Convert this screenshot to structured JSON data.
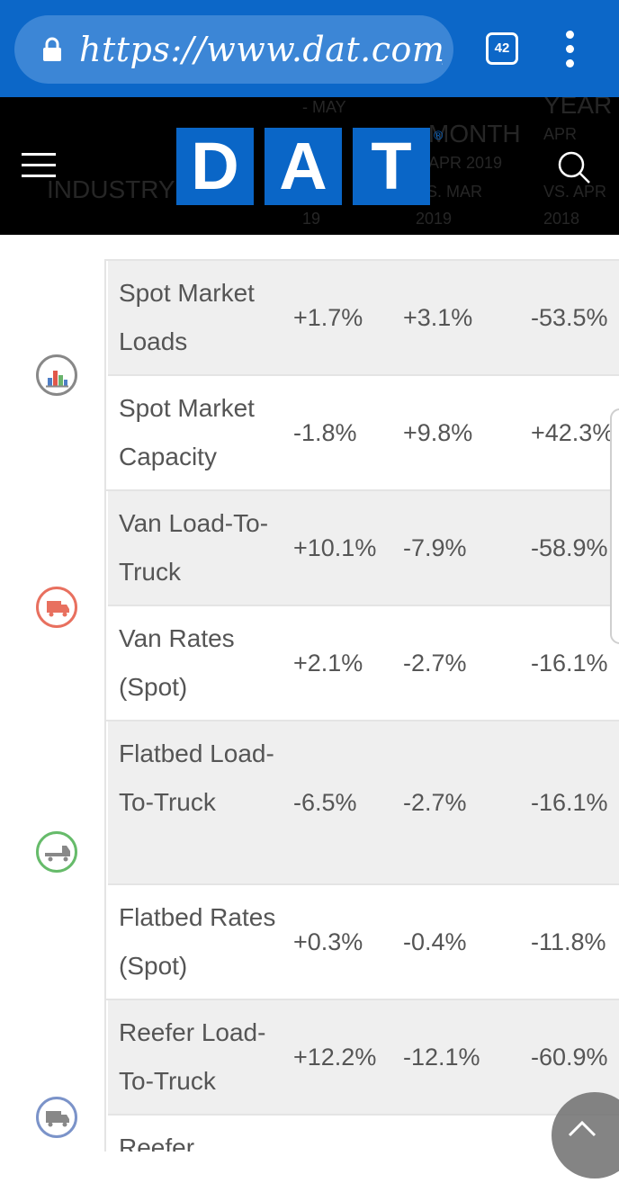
{
  "browser": {
    "url": "https://www.dat.com/in",
    "tab_count": "42"
  },
  "header": {
    "logo_letters": [
      "D",
      "A",
      "T"
    ],
    "logo_mark": "®",
    "ghost_texts": [
      "INDUSTRY T",
      "- MAY",
      "MONTH",
      "APR 2019",
      "VS. MAR",
      "2019",
      "YEAR",
      "APR",
      "VS. APR",
      "2018",
      "19"
    ]
  },
  "metrics": [
    {
      "icon": "bar-chart-icon",
      "color": "#888888",
      "rows": [
        {
          "label": "Spot Market Loads",
          "week": "+1.7%",
          "month": "+3.1%",
          "year": "-53.5%"
        },
        {
          "label": "Spot Market Capacity",
          "week": "-1.8%",
          "month": "+9.8%",
          "year": "+42.3%"
        }
      ]
    },
    {
      "icon": "van-truck-icon",
      "color": "#e8705f",
      "rows": [
        {
          "label": "Van Load-To-Truck",
          "week": "+10.1%",
          "month": "-7.9%",
          "year": "-58.9%"
        },
        {
          "label": "Van Rates (Spot)",
          "week": "+2.1%",
          "month": "-2.7%",
          "year": "-16.1%"
        }
      ]
    },
    {
      "icon": "flatbed-truck-icon",
      "color": "#66bb6a",
      "rows": [
        {
          "label": "Flatbed Load-To-Truck",
          "week": "-6.5%",
          "month": "-2.7%",
          "year": "-16.1%"
        },
        {
          "label": "Flatbed Rates (Spot)",
          "week": "+0.3%",
          "month": "-0.4%",
          "year": "-11.8%"
        }
      ]
    },
    {
      "icon": "reefer-truck-icon",
      "color": "#7b93c9",
      "rows": [
        {
          "label": "Reefer Load-To-Truck",
          "week": "+12.2%",
          "month": "-12.1%",
          "year": "-60.9%"
        },
        {
          "label": "Reefer",
          "week": "",
          "month": "",
          "year": ""
        }
      ]
    }
  ],
  "colors": {
    "browser_blue": "#0c67c8",
    "logo_blue": "#0a66c7",
    "row_shade": "#efefef"
  }
}
